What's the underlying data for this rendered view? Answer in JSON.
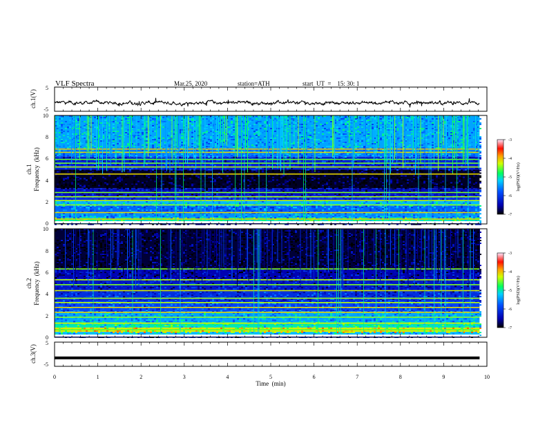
{
  "header": {
    "title": "VLF  Spectra",
    "date": "Mar.25, 2020",
    "station": "station=ATH",
    "start": "start  UT  =    15: 30: 1"
  },
  "chart_data": [
    {
      "type": "line",
      "panel": "ch1-waveform",
      "ylabel": "ch.1(V)",
      "ylim": [
        -5,
        5
      ],
      "yticks": [
        "5",
        "-5"
      ],
      "baseline": -1.5,
      "color": "#000000"
    },
    {
      "type": "heatmap",
      "panel": "ch1-spectrogram",
      "ylabel_top": "ch.1",
      "ylabel": "Frequency  (kHz)",
      "ylim": [
        0,
        10
      ],
      "yticks": [
        "10",
        "8",
        "6",
        "4",
        "2",
        "0"
      ],
      "colorbar": {
        "label": "log(PSD)(V²/Hz)",
        "ticks": [
          "-3",
          "-4",
          "-5",
          "-6",
          "-7"
        ],
        "range": [
          -7,
          -3
        ]
      },
      "bands": [
        {
          "f0": 0.0,
          "f1": 0.15,
          "level": -6.6
        },
        {
          "f0": 0.15,
          "f1": 0.3,
          "level": -5.2
        },
        {
          "f0": 0.3,
          "f1": 0.6,
          "level": -4.9
        },
        {
          "f0": 0.6,
          "f1": 1.0,
          "level": -5.5
        },
        {
          "f0": 1.0,
          "f1": 1.7,
          "level": -5.7
        },
        {
          "f0": 1.7,
          "f1": 2.1,
          "level": -5.3
        },
        {
          "f0": 2.1,
          "f1": 2.6,
          "level": -6.1
        },
        {
          "f0": 2.6,
          "f1": 3.3,
          "level": -6.4
        },
        {
          "f0": 3.3,
          "f1": 5.0,
          "level": -6.9
        },
        {
          "f0": 5.0,
          "f1": 6.2,
          "level": -6.2
        },
        {
          "f0": 6.2,
          "f1": 7.0,
          "level": -5.6
        },
        {
          "f0": 7.0,
          "f1": 10.0,
          "level": -5.4
        }
      ],
      "lines_khz": [
        0.45,
        1.05,
        1.75,
        2.15,
        2.5,
        2.9,
        4.6,
        5.25,
        5.6,
        5.95,
        6.6,
        6.9
      ]
    },
    {
      "type": "heatmap",
      "panel": "ch2-spectrogram",
      "ylabel_top": "ch.2",
      "ylabel": "Frequency  (kHz)",
      "ylim": [
        0,
        10
      ],
      "yticks": [
        "10",
        "8",
        "6",
        "4",
        "2",
        "0"
      ],
      "colorbar": {
        "label": "log(PSD)(V²/Hz)",
        "ticks": [
          "-3",
          "-4",
          "-5",
          "-6",
          "-7"
        ],
        "range": [
          -7,
          -3
        ]
      },
      "bands": [
        {
          "f0": 0.0,
          "f1": 0.2,
          "level": -6.5
        },
        {
          "f0": 0.2,
          "f1": 0.5,
          "level": -5.3
        },
        {
          "f0": 0.5,
          "f1": 0.9,
          "level": -4.2
        },
        {
          "f0": 0.9,
          "f1": 1.4,
          "level": -5.0
        },
        {
          "f0": 1.4,
          "f1": 2.4,
          "level": -5.4
        },
        {
          "f0": 2.4,
          "f1": 3.3,
          "level": -5.9
        },
        {
          "f0": 3.3,
          "f1": 4.2,
          "level": -6.1
        },
        {
          "f0": 4.2,
          "f1": 5.4,
          "level": -6.3
        },
        {
          "f0": 5.4,
          "f1": 6.3,
          "level": -6.5
        },
        {
          "f0": 6.3,
          "f1": 10.0,
          "level": -6.85
        }
      ],
      "lines_khz": [
        0.7,
        1.3,
        1.85,
        2.3,
        2.75,
        3.2,
        3.6,
        4.3,
        4.85,
        5.3,
        6.3
      ]
    },
    {
      "type": "line",
      "panel": "ch3-waveform",
      "ylabel": "ch.3(V)",
      "ylim": [
        -5,
        5
      ],
      "yticks": [
        "5",
        "-5"
      ],
      "baseline": -1.5,
      "color": "#000000"
    }
  ],
  "xaxis": {
    "label": "Time  (min)",
    "range": [
      0,
      10
    ],
    "ticks": [
      "0",
      "1",
      "2",
      "3",
      "4",
      "5",
      "6",
      "7",
      "8",
      "9",
      "10"
    ],
    "data_end": 9.83
  }
}
